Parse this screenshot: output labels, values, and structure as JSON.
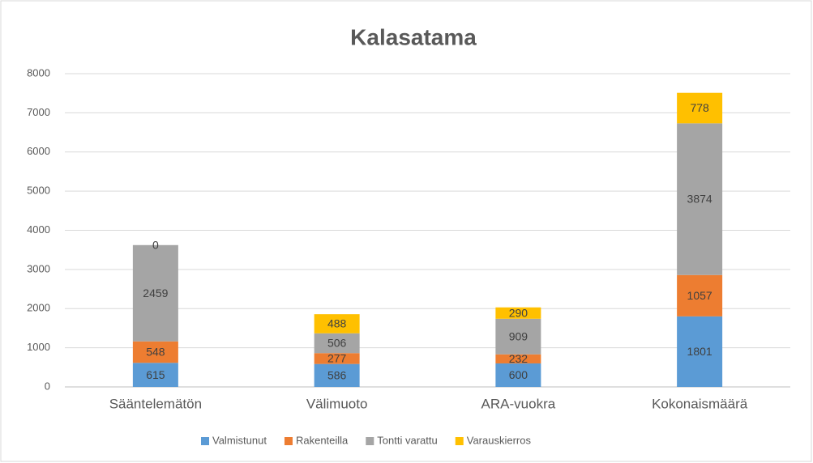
{
  "chart_data": {
    "type": "bar",
    "stacked": true,
    "title": "Kalasatama",
    "categories": [
      "Sääntelemätön",
      "Välimuoto",
      "ARA-vuokra",
      "Kokonaismäärä"
    ],
    "series": [
      {
        "name": "Valmistunut",
        "color": "#5b9bd5",
        "values": [
          615,
          586,
          600,
          1801
        ]
      },
      {
        "name": "Rakenteilla",
        "color": "#ed7d31",
        "values": [
          548,
          277,
          232,
          1057
        ]
      },
      {
        "name": "Tontti varattu",
        "color": "#a5a5a5",
        "values": [
          2459,
          506,
          909,
          3874
        ]
      },
      {
        "name": "Varauskierros",
        "color": "#ffc000",
        "values": [
          0,
          488,
          290,
          778
        ]
      }
    ],
    "ylim": [
      0,
      8000
    ],
    "yticks": [
      0,
      1000,
      2000,
      3000,
      4000,
      5000,
      6000,
      7000,
      8000
    ],
    "grid": true,
    "legend": "bottom"
  }
}
